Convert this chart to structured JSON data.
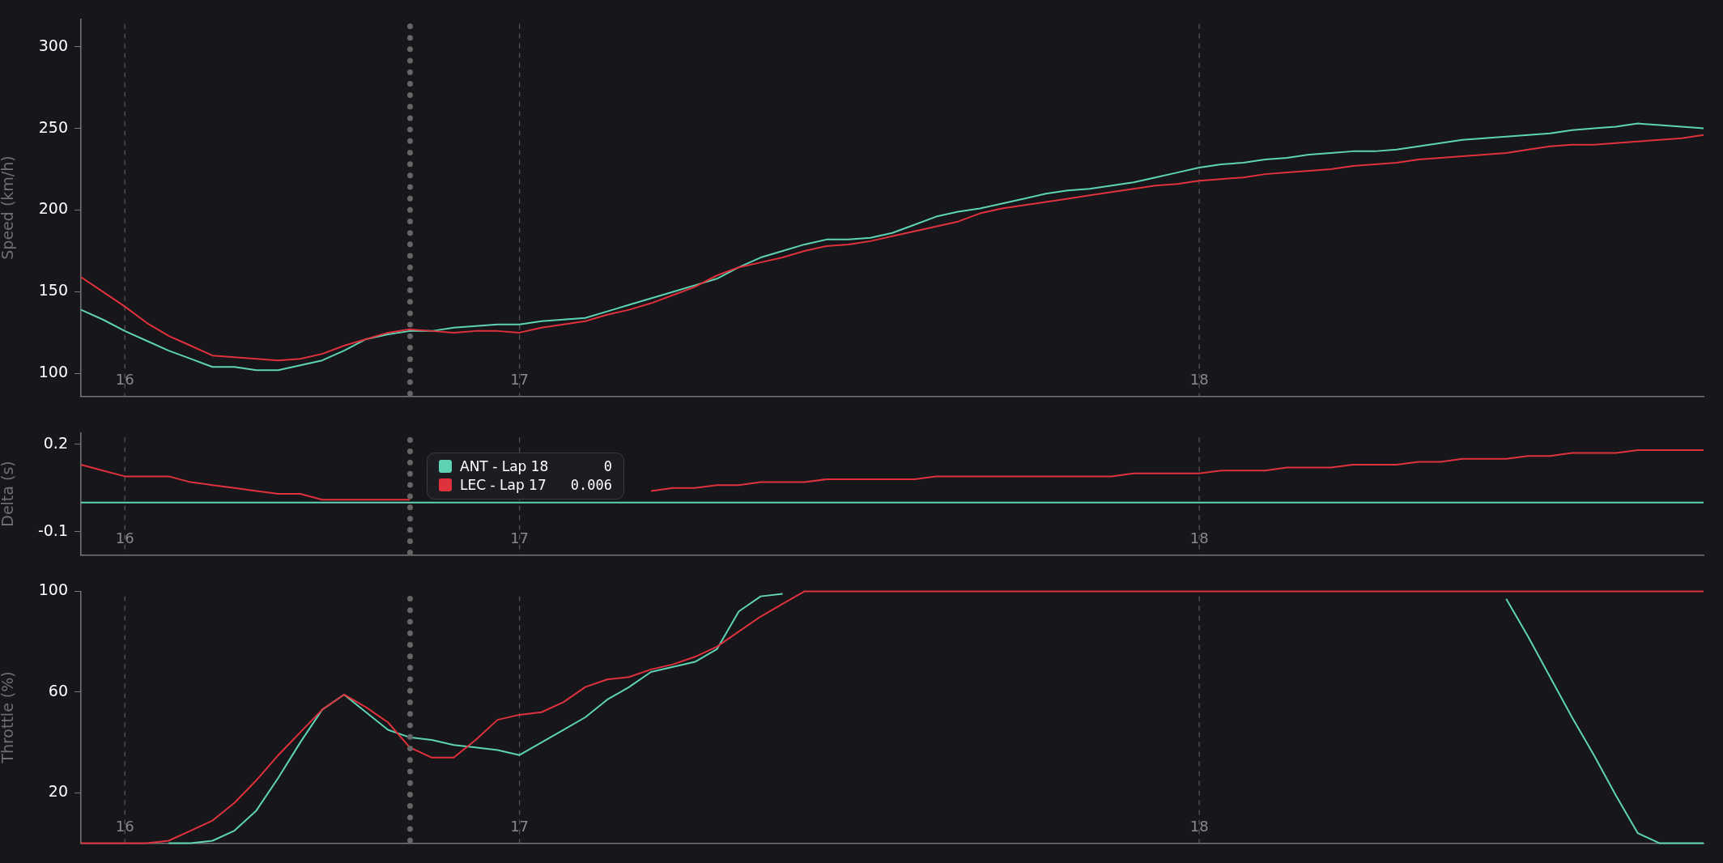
{
  "chart_data": [
    {
      "type": "line",
      "ylabel": "Speed (km/h)",
      "categories": [
        null,
        null,
        "16",
        null,
        null,
        null,
        null,
        null,
        null,
        null,
        null,
        null,
        null,
        null,
        null,
        null,
        null,
        null,
        null,
        null,
        "17",
        null,
        null,
        null,
        null,
        null,
        null,
        null,
        null,
        null,
        null,
        null,
        null,
        null,
        null,
        null,
        null,
        null,
        null,
        null,
        null,
        null,
        null,
        null,
        null,
        null,
        null,
        null,
        null,
        null,
        null,
        "18",
        null,
        null,
        null,
        null,
        null,
        null,
        null,
        null,
        null,
        null,
        null,
        null,
        null,
        null,
        null,
        null,
        null,
        null,
        null,
        null,
        null,
        null,
        null
      ],
      "ylim": [
        86,
        317
      ],
      "yticks": [
        100,
        150,
        200,
        250,
        300
      ],
      "grid": false,
      "marker": "none",
      "line_style": "solid",
      "ref_lines": [
        {
          "axis": "x",
          "value": "16",
          "color": "#555555",
          "line_style": "dashed"
        },
        {
          "axis": "x",
          "value": "17",
          "color": "#555555",
          "line_style": "dashed"
        },
        {
          "axis": "x",
          "value": "18",
          "color": "#555555",
          "line_style": "dashed"
        }
      ],
      "series": [
        {
          "color": "#5fd4b4",
          "values": [
            139,
            133,
            126,
            120,
            114,
            109,
            104,
            104,
            102,
            102,
            105,
            108,
            114,
            121,
            124,
            126,
            126,
            128,
            129,
            130,
            130,
            132,
            133,
            134,
            138,
            142,
            146,
            150,
            154,
            158,
            165,
            171,
            175,
            179,
            182,
            182,
            183,
            186,
            191,
            196,
            199,
            201,
            204,
            207,
            210,
            212,
            213,
            215,
            217,
            220,
            223,
            226,
            228,
            229,
            231,
            232,
            234,
            235,
            236,
            236,
            237,
            239,
            241,
            243,
            244,
            245,
            246,
            247,
            249,
            250,
            251,
            253,
            252,
            251,
            250
          ]
        },
        {
          "color": "#e0323c",
          "values": [
            159,
            150,
            141,
            131,
            123,
            117,
            111,
            110,
            109,
            108,
            109,
            112,
            117,
            121,
            125,
            127,
            126,
            125,
            126,
            126,
            125,
            128,
            130,
            132,
            136,
            139,
            143,
            148,
            153,
            160,
            165,
            168,
            171,
            175,
            178,
            179,
            181,
            184,
            187,
            190,
            193,
            198,
            201,
            203,
            205,
            207,
            209,
            211,
            213,
            215,
            216,
            218,
            219,
            220,
            222,
            223,
            224,
            225,
            227,
            228,
            229,
            231,
            232,
            233,
            234,
            235,
            237,
            239,
            240,
            240,
            241,
            242,
            243,
            244,
            246
          ]
        }
      ]
    },
    {
      "type": "line",
      "ylabel": "Delta (s)",
      "categories": [
        null,
        null,
        "16",
        null,
        null,
        null,
        null,
        null,
        null,
        null,
        null,
        null,
        null,
        null,
        null,
        null,
        null,
        null,
        null,
        null,
        "17",
        null,
        null,
        null,
        null,
        null,
        null,
        null,
        null,
        null,
        null,
        null,
        null,
        null,
        null,
        null,
        null,
        null,
        null,
        null,
        null,
        null,
        null,
        null,
        null,
        null,
        null,
        null,
        null,
        null,
        null,
        "18",
        null,
        null,
        null,
        null,
        null,
        null,
        null,
        null,
        null,
        null,
        null,
        null,
        null,
        null,
        null,
        null,
        null,
        null,
        null,
        null,
        null,
        null,
        null
      ],
      "ylim": [
        -0.18,
        0.24
      ],
      "yticks": [
        -0.1,
        0.2
      ],
      "grid": false,
      "marker": "none",
      "line_style": "solid",
      "legend": "top left",
      "annotations": [
        "0",
        "0.006"
      ],
      "ref_lines": [
        {
          "axis": "x",
          "value": "16",
          "color": "#555555",
          "line_style": "dashed"
        },
        {
          "axis": "x",
          "value": "17",
          "color": "#555555",
          "line_style": "dashed"
        },
        {
          "axis": "x",
          "value": "18",
          "color": "#555555",
          "line_style": "dashed"
        }
      ],
      "series": [
        {
          "name": "ANT - Lap 18",
          "color": "#5fd4b4",
          "values": [
            0,
            0,
            0,
            0,
            0,
            0,
            0,
            0,
            0,
            0,
            0,
            0,
            0,
            0,
            0,
            0,
            0,
            0,
            0,
            0,
            0,
            0,
            0,
            0,
            0,
            0,
            0,
            0,
            0,
            0,
            0,
            0,
            0,
            0,
            0,
            0,
            0,
            0,
            0,
            0,
            0,
            0,
            0,
            0,
            0,
            0,
            0,
            0,
            0,
            0,
            0,
            0,
            0,
            0,
            0,
            0,
            0,
            0,
            0,
            0,
            0,
            0,
            0,
            0,
            0,
            0,
            0,
            0,
            0,
            0,
            0,
            0,
            0,
            0,
            0
          ]
        },
        {
          "name": "LEC - Lap 17",
          "color": "#e0323c",
          "values": [
            0.13,
            0.11,
            0.09,
            0.09,
            0.09,
            0.07,
            0.06,
            0.05,
            0.04,
            0.03,
            0.03,
            0.01,
            0.01,
            0.01,
            0.01,
            0.01,
            null,
            null,
            null,
            null,
            null,
            null,
            null,
            null,
            null,
            null,
            0.04,
            0.05,
            0.05,
            0.06,
            0.06,
            0.07,
            0.07,
            0.07,
            0.08,
            0.08,
            0.08,
            0.08,
            0.08,
            0.09,
            0.09,
            0.09,
            0.09,
            0.09,
            0.09,
            0.09,
            0.09,
            0.09,
            0.1,
            0.1,
            0.1,
            0.1,
            0.11,
            0.11,
            0.11,
            0.12,
            0.12,
            0.12,
            0.13,
            0.13,
            0.13,
            0.14,
            0.14,
            0.15,
            0.15,
            0.15,
            0.16,
            0.16,
            0.17,
            0.17,
            0.17,
            0.18,
            0.18,
            0.18,
            0.18
          ]
        }
      ]
    },
    {
      "type": "line",
      "ylabel": "Throttle (%)",
      "categories": [
        null,
        null,
        "16",
        null,
        null,
        null,
        null,
        null,
        null,
        null,
        null,
        null,
        null,
        null,
        null,
        null,
        null,
        null,
        null,
        null,
        "17",
        null,
        null,
        null,
        null,
        null,
        null,
        null,
        null,
        null,
        null,
        null,
        null,
        null,
        null,
        null,
        null,
        null,
        null,
        null,
        null,
        null,
        null,
        null,
        null,
        null,
        null,
        null,
        null,
        null,
        null,
        "18",
        null,
        null,
        null,
        null,
        null,
        null,
        null,
        null,
        null,
        null,
        null,
        null,
        null,
        null,
        null,
        null,
        null,
        null,
        null,
        null,
        null,
        null,
        null
      ],
      "ylim": [
        0,
        100
      ],
      "yticks": [
        20,
        60,
        100
      ],
      "grid": false,
      "marker": "none",
      "line_style": "solid",
      "ref_lines": [
        {
          "axis": "x",
          "value": "16",
          "color": "#555555",
          "line_style": "dashed"
        },
        {
          "axis": "x",
          "value": "17",
          "color": "#555555",
          "line_style": "dashed"
        },
        {
          "axis": "x",
          "value": "18",
          "color": "#555555",
          "line_style": "dashed"
        }
      ],
      "series": [
        {
          "color": "#5fd4b4",
          "values": [
            null,
            null,
            null,
            null,
            0,
            0,
            1,
            5,
            13,
            26,
            40,
            53,
            59,
            52,
            45,
            42,
            41,
            39,
            38,
            37,
            35,
            40,
            45,
            50,
            57,
            62,
            68,
            70,
            72,
            77,
            92,
            98,
            99,
            null,
            null,
            null,
            null,
            null,
            null,
            null,
            null,
            null,
            null,
            null,
            null,
            null,
            null,
            null,
            null,
            null,
            null,
            null,
            null,
            null,
            null,
            null,
            null,
            null,
            null,
            null,
            null,
            null,
            null,
            null,
            null,
            97,
            82,
            66,
            50,
            35,
            19,
            4,
            0,
            0,
            0
          ]
        },
        {
          "color": "#e0323c",
          "values": [
            0,
            0,
            0,
            0,
            1,
            5,
            9,
            16,
            25,
            35,
            44,
            53,
            59,
            54,
            48,
            38,
            34,
            34,
            41,
            49,
            51,
            52,
            56,
            62,
            65,
            66,
            69,
            71,
            74,
            78,
            84,
            90,
            95,
            100,
            100,
            100,
            100,
            100,
            100,
            100,
            100,
            100,
            100,
            100,
            100,
            100,
            100,
            100,
            100,
            100,
            100,
            100,
            100,
            100,
            100,
            100,
            100,
            100,
            100,
            100,
            100,
            100,
            100,
            100,
            100,
            100,
            100,
            100,
            100,
            100,
            100,
            100,
            100,
            100,
            100
          ]
        }
      ]
    }
  ]
}
